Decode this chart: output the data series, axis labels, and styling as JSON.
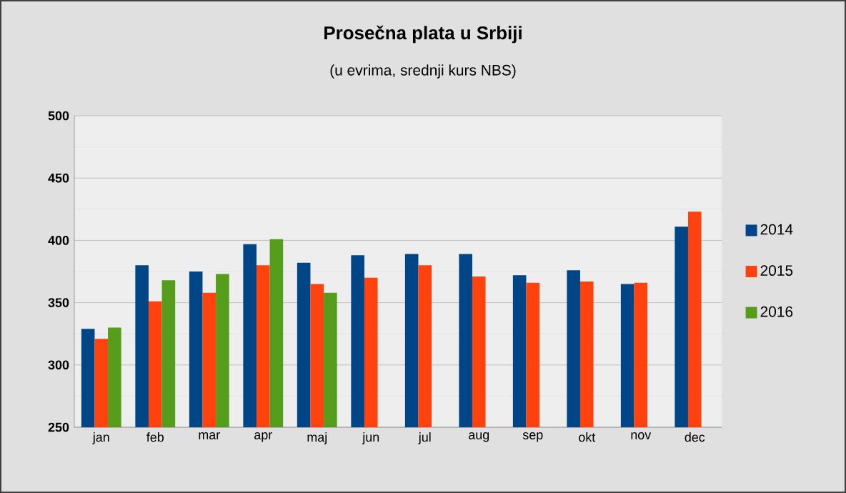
{
  "chart_data": {
    "type": "bar",
    "title": "Prosečna plata u Srbiji",
    "subtitle": "(u evrima, srednji kurs NBS)",
    "categories": [
      "jan",
      "feb",
      "mar",
      "apr",
      "maj",
      "jun",
      "jul",
      "aug",
      "sep",
      "okt",
      "nov",
      "dec"
    ],
    "series": [
      {
        "name": "2014",
        "color": "#004586",
        "values": [
          329,
          380,
          375,
          397,
          382,
          388,
          389,
          389,
          372,
          376,
          365,
          411
        ]
      },
      {
        "name": "2015",
        "color": "#ff420e",
        "values": [
          321,
          351,
          358,
          380,
          365,
          370,
          380,
          371,
          366,
          367,
          366,
          423
        ]
      },
      {
        "name": "2016",
        "color": "#579d1c",
        "values": [
          330,
          368,
          373,
          401,
          358,
          null,
          null,
          null,
          null,
          null,
          null,
          null
        ]
      }
    ],
    "ylim": [
      250,
      500
    ],
    "yticks": [
      250,
      {
        "value": 275,
        "label": null
      },
      300,
      {
        "value": 325,
        "label": null
      },
      350,
      {
        "value": 375,
        "label": null
      },
      400,
      {
        "value": 425,
        "label": null
      },
      450,
      {
        "value": 475,
        "label": null
      },
      500
    ],
    "grid": "y",
    "legend": "right"
  }
}
